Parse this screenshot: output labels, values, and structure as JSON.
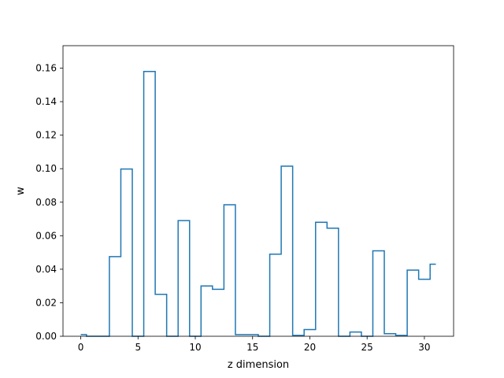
{
  "chart_data": {
    "type": "line",
    "drawstyle": "steps-mid",
    "title": "",
    "xlabel": "z dimension",
    "ylabel": "w",
    "xlim": [
      -1.55,
      32.55
    ],
    "ylim": [
      0,
      0.1734
    ],
    "xticks": [
      0,
      5,
      10,
      15,
      20,
      25,
      30
    ],
    "yticks": [
      "0.00",
      "0.02",
      "0.04",
      "0.06",
      "0.08",
      "0.10",
      "0.12",
      "0.14",
      "0.16"
    ],
    "grid": false,
    "legend": "none",
    "line_color": "#1f77b4",
    "x": [
      0,
      1,
      2,
      3,
      4,
      5,
      6,
      7,
      8,
      9,
      10,
      11,
      12,
      13,
      14,
      15,
      16,
      17,
      18,
      19,
      20,
      21,
      22,
      23,
      24,
      25,
      26,
      27,
      28,
      29,
      30,
      31
    ],
    "values": [
      0.001,
      0,
      0,
      0.0475,
      0.0998,
      0,
      0.158,
      0.025,
      0,
      0.069,
      0,
      0.03,
      0.028,
      0.0785,
      0.001,
      0.001,
      0,
      0.049,
      0.1015,
      0.0005,
      0.004,
      0.068,
      0.0645,
      0,
      0.0025,
      0,
      0.051,
      0.0015,
      0.0005,
      0.0395,
      0.034,
      0.043
    ]
  }
}
